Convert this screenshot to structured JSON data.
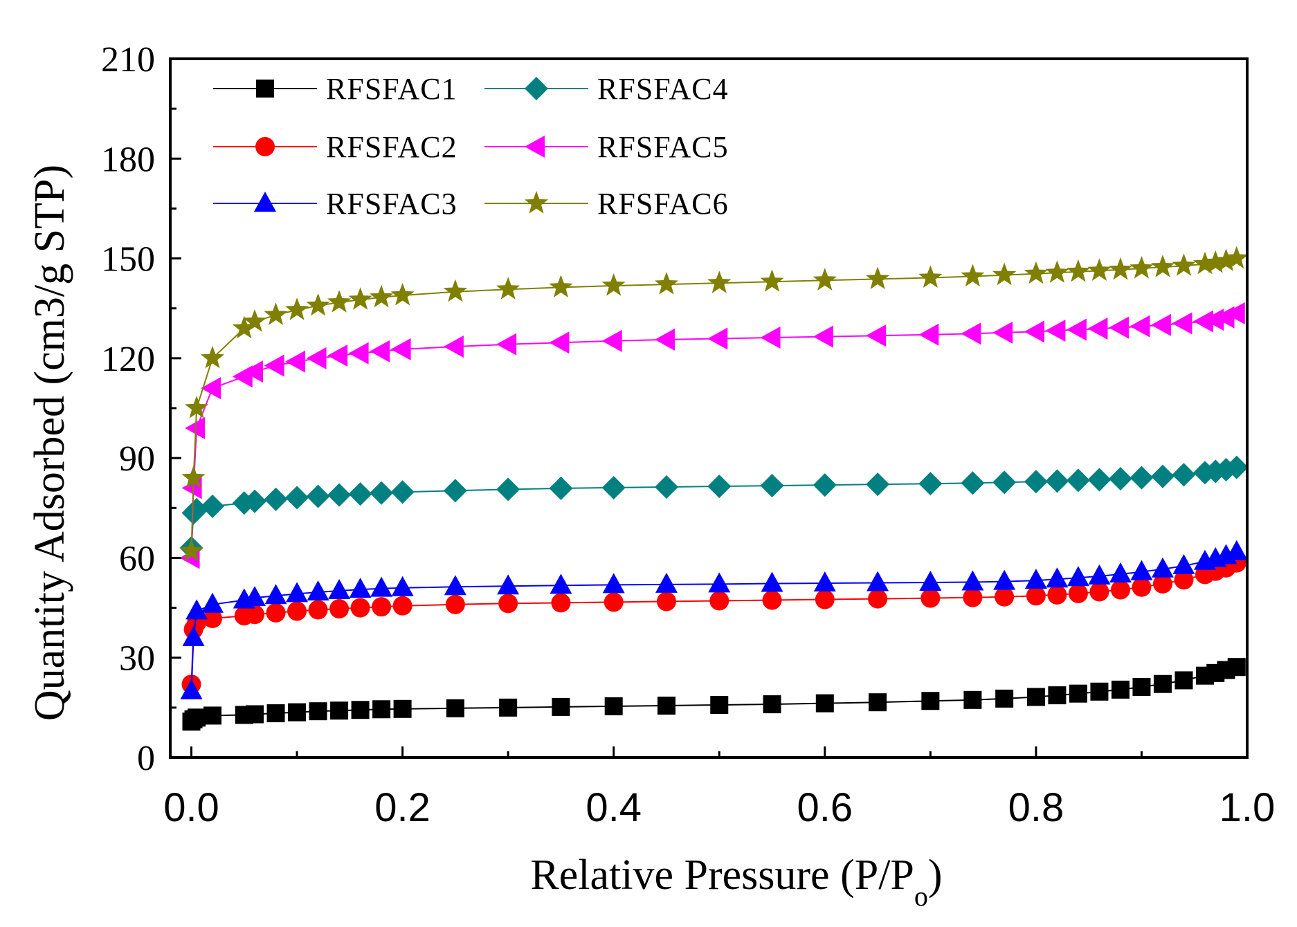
{
  "chart_data": {
    "type": "line",
    "title": "",
    "xlabel": "Relative Pressure (P/P",
    "xlabel_subscript": "o",
    "xlabel_suffix": ")",
    "ylabel": "Quantity Adsorbed (cm3/g  STP)",
    "xlim": [
      -0.02,
      1.0
    ],
    "ylim": [
      0,
      210
    ],
    "xticks": [
      0.0,
      0.2,
      0.4,
      0.6,
      0.8,
      1.0
    ],
    "xtick_labels": [
      "0.0",
      "0.2",
      "0.4",
      "0.6",
      "0.8",
      "1.0"
    ],
    "yticks": [
      0,
      30,
      60,
      90,
      120,
      150,
      180,
      210
    ],
    "ytick_labels": [
      "0",
      "30",
      "60",
      "90",
      "120",
      "150",
      "180",
      "210"
    ],
    "grid": false,
    "legend_position": "top-left",
    "x": [
      0.0,
      0.002,
      0.005,
      0.02,
      0.05,
      0.06,
      0.08,
      0.1,
      0.12,
      0.14,
      0.16,
      0.18,
      0.2,
      0.25,
      0.3,
      0.35,
      0.4,
      0.45,
      0.5,
      0.55,
      0.6,
      0.65,
      0.7,
      0.74,
      0.77,
      0.8,
      0.82,
      0.84,
      0.86,
      0.88,
      0.9,
      0.92,
      0.94,
      0.96,
      0.97,
      0.98,
      0.99
    ],
    "series": [
      {
        "name": "RFSFAC1",
        "marker": "square",
        "color": "#000000",
        "values": [
          10.8,
          11.5,
          12.0,
          12.6,
          12.8,
          13.0,
          13.3,
          13.6,
          13.9,
          14.1,
          14.3,
          14.5,
          14.6,
          14.8,
          15.0,
          15.2,
          15.4,
          15.6,
          15.8,
          16.0,
          16.3,
          16.6,
          17.0,
          17.3,
          17.7,
          18.2,
          18.7,
          19.2,
          19.8,
          20.4,
          21.2,
          22.1,
          23.2,
          24.6,
          25.4,
          26.3,
          27.2
        ]
      },
      {
        "name": "RFSFAC2",
        "marker": "circle",
        "color": "#ff0000",
        "values": [
          22.0,
          38.5,
          40.5,
          41.8,
          42.6,
          43.0,
          43.5,
          44.0,
          44.4,
          44.7,
          45.0,
          45.3,
          45.6,
          46.0,
          46.3,
          46.5,
          46.7,
          46.9,
          47.1,
          47.3,
          47.5,
          47.7,
          47.9,
          48.1,
          48.3,
          48.6,
          48.9,
          49.3,
          49.8,
          50.4,
          51.2,
          52.2,
          53.4,
          55.0,
          56.0,
          57.0,
          58.5
        ]
      },
      {
        "name": "RFSFAC3",
        "marker": "triangle-up",
        "color": "#0000ff",
        "values": [
          20.0,
          36.0,
          44.0,
          46.0,
          47.3,
          48.0,
          48.6,
          49.2,
          49.7,
          50.1,
          50.5,
          50.8,
          51.0,
          51.3,
          51.5,
          51.7,
          51.9,
          52.0,
          52.1,
          52.3,
          52.4,
          52.5,
          52.6,
          52.7,
          52.9,
          53.2,
          53.6,
          54.0,
          54.5,
          55.1,
          55.8,
          56.6,
          57.6,
          58.9,
          59.7,
          60.6,
          61.8
        ]
      },
      {
        "name": "RFSFAC4",
        "marker": "diamond",
        "color": "#008080",
        "values": [
          63.0,
          73.5,
          74.5,
          75.5,
          76.5,
          77.0,
          77.6,
          78.1,
          78.5,
          78.9,
          79.2,
          79.5,
          79.8,
          80.2,
          80.6,
          80.9,
          81.1,
          81.3,
          81.5,
          81.7,
          81.9,
          82.1,
          82.3,
          82.5,
          82.7,
          82.9,
          83.1,
          83.3,
          83.5,
          83.8,
          84.1,
          84.5,
          85.0,
          85.6,
          86.0,
          86.5,
          87.2
        ]
      },
      {
        "name": "RFSFAC5",
        "marker": "triangle-left",
        "color": "#ff00ff",
        "values": [
          60.0,
          81.0,
          99.0,
          111.0,
          114.5,
          116.0,
          117.8,
          119.0,
          120.0,
          120.8,
          121.5,
          122.1,
          122.7,
          123.5,
          124.2,
          124.7,
          125.2,
          125.6,
          125.9,
          126.2,
          126.5,
          126.8,
          127.1,
          127.4,
          127.7,
          128.0,
          128.3,
          128.6,
          128.9,
          129.2,
          129.6,
          130.0,
          130.5,
          131.1,
          131.6,
          132.3,
          133.5
        ]
      },
      {
        "name": "RFSFAC6",
        "marker": "star",
        "color": "#808000",
        "values": [
          62.0,
          84.0,
          105.0,
          120.0,
          129.0,
          131.0,
          133.0,
          134.5,
          135.8,
          136.8,
          137.6,
          138.3,
          138.9,
          140.0,
          140.7,
          141.3,
          141.8,
          142.2,
          142.6,
          143.0,
          143.4,
          143.8,
          144.2,
          144.6,
          145.0,
          145.4,
          145.7,
          146.0,
          146.3,
          146.6,
          147.0,
          147.4,
          147.8,
          148.3,
          148.7,
          149.2,
          150.0
        ]
      }
    ]
  }
}
